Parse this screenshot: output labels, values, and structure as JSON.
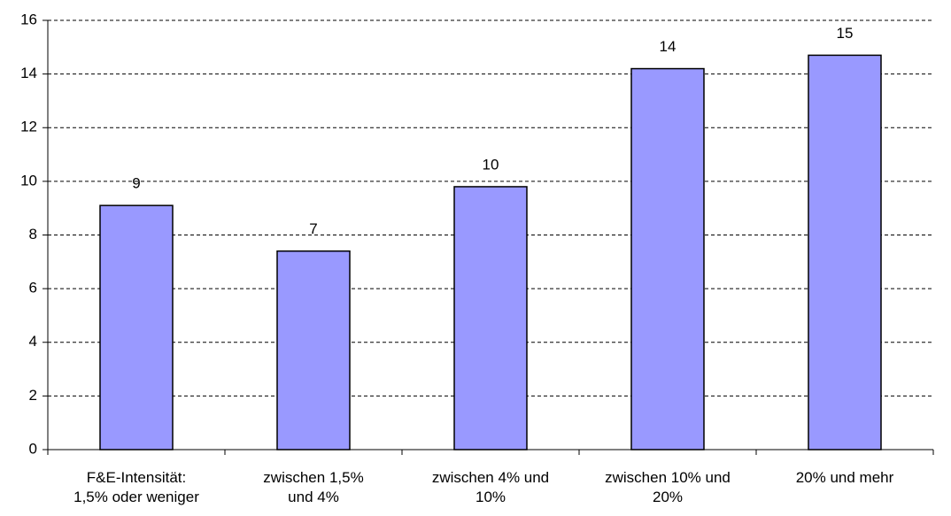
{
  "chart_data": {
    "type": "bar",
    "categories": [
      "F&E-Intensität:\n1,5% oder weniger",
      "zwischen 1,5%\nund 4%",
      "zwischen 4% und\n10%",
      "zwischen 10% und\n20%",
      "20% und mehr"
    ],
    "values": [
      9.1,
      7.4,
      9.8,
      14.2,
      14.7
    ],
    "value_labels": [
      "9",
      "7",
      "10",
      "14",
      "15"
    ],
    "color": "#9999ff",
    "ylim": [
      0,
      16
    ],
    "yticks": [
      0,
      2,
      4,
      6,
      8,
      10,
      12,
      14,
      16
    ],
    "grid": true
  }
}
